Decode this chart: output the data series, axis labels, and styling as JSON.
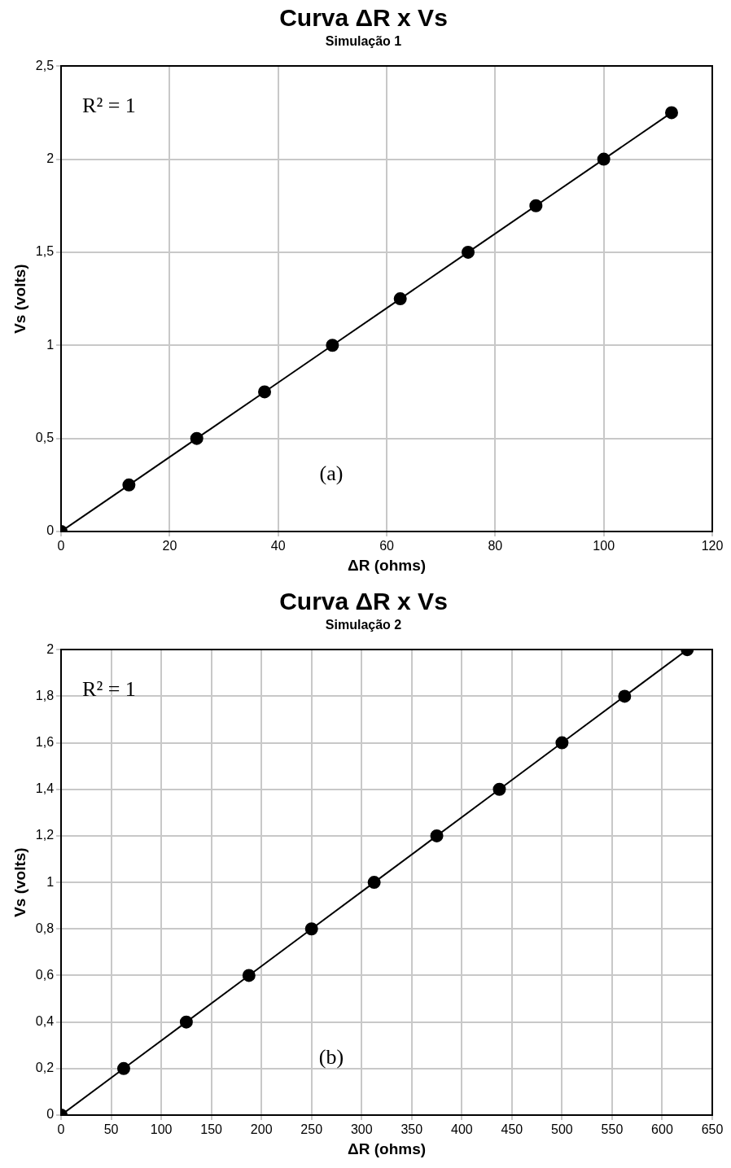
{
  "chart_data": [
    {
      "type": "line",
      "title": "Curva ΔR x Vs",
      "subtitle": "Simulação 1",
      "xlabel": "ΔR (ohms)",
      "ylabel": "Vs (volts)",
      "annotations": [
        "R² = 1",
        "(a)"
      ],
      "x": [
        0,
        12.5,
        25,
        37.5,
        50,
        62.5,
        75,
        87.5,
        100,
        112.5
      ],
      "series": [
        {
          "color": "#000000",
          "values": [
            0,
            0.25,
            0.5,
            0.75,
            1,
            1.25,
            1.5,
            1.75,
            2,
            2.25
          ]
        }
      ],
      "xlim": [
        0,
        120
      ],
      "xticks": [
        0,
        20,
        40,
        60,
        80,
        100,
        120
      ],
      "ylim": [
        0,
        2.5
      ],
      "yticks": [
        0,
        {
          "value": 0.5,
          "label": "0,5"
        },
        1,
        {
          "value": 1.5,
          "label": "1,5"
        },
        2,
        {
          "value": 2.5,
          "label": "2,5"
        }
      ],
      "grid": true,
      "legend": false,
      "marker": "circle",
      "line_style": "solid"
    },
    {
      "type": "line",
      "title": "Curva ΔR x Vs",
      "subtitle": "Simulação 2",
      "xlabel": "ΔR (ohms)",
      "ylabel": "Vs (volts)",
      "annotations": [
        "R² = 1",
        "(b)"
      ],
      "x": [
        0,
        62.5,
        125,
        187.5,
        250,
        312.5,
        375,
        437.5,
        500,
        562.5,
        625
      ],
      "series": [
        {
          "color": "#000000",
          "values": [
            0,
            0.2,
            0.4,
            0.6,
            0.8,
            1,
            1.2,
            1.4,
            1.6,
            1.8,
            2
          ]
        }
      ],
      "xlim": [
        0,
        650
      ],
      "xticks": [
        0,
        50,
        100,
        150,
        200,
        250,
        300,
        350,
        400,
        450,
        500,
        550,
        600,
        650
      ],
      "ylim": [
        0,
        2
      ],
      "yticks": [
        0,
        {
          "value": 0.2,
          "label": "0,2"
        },
        {
          "value": 0.4,
          "label": "0,4"
        },
        {
          "value": 0.6,
          "label": "0,6"
        },
        {
          "value": 0.8,
          "label": "0,8"
        },
        1,
        {
          "value": 1.2,
          "label": "1,2"
        },
        {
          "value": 1.4,
          "label": "1,4"
        },
        {
          "value": 1.6,
          "label": "1,6"
        },
        {
          "value": 1.8,
          "label": "1,8"
        },
        2
      ],
      "grid": true,
      "legend": false,
      "marker": "circle",
      "line_style": "solid"
    }
  ]
}
